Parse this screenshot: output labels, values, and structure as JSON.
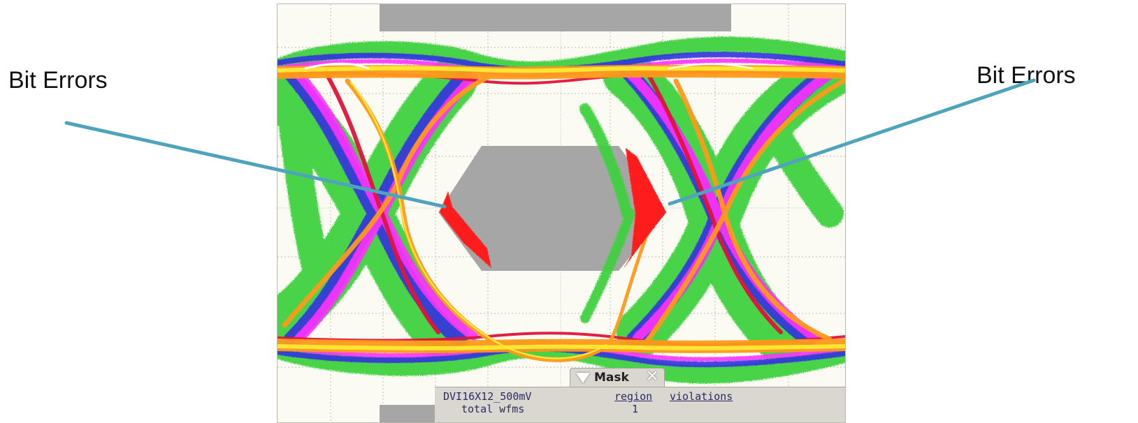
{
  "annotations": {
    "left_label": "Bit Errors",
    "right_label": "Bit Errors",
    "arrow_color": "#4fa3bd"
  },
  "scope": {
    "mask_tab": {
      "title": "Mask",
      "close_icon": "close-icon",
      "collapse_icon": "triangle-down-icon"
    },
    "mask_panel": {
      "mask_name": "DVI16X12_500mV",
      "subtitle": "total wfms",
      "region_header": "region",
      "violations_header": "violations",
      "region_value": "1"
    },
    "colors": {
      "background": "#fbfbf4",
      "mask_region": "#a6a6a6",
      "grid": "#bdbdb3",
      "violation": "#ff1a1a",
      "trace_green": "#3fd13f",
      "trace_blue": "#3030e0",
      "trace_magenta": "#ff30ff",
      "trace_red": "#e0143c",
      "trace_orange": "#ff9a1a",
      "trace_yellow": "#ffe633"
    }
  }
}
